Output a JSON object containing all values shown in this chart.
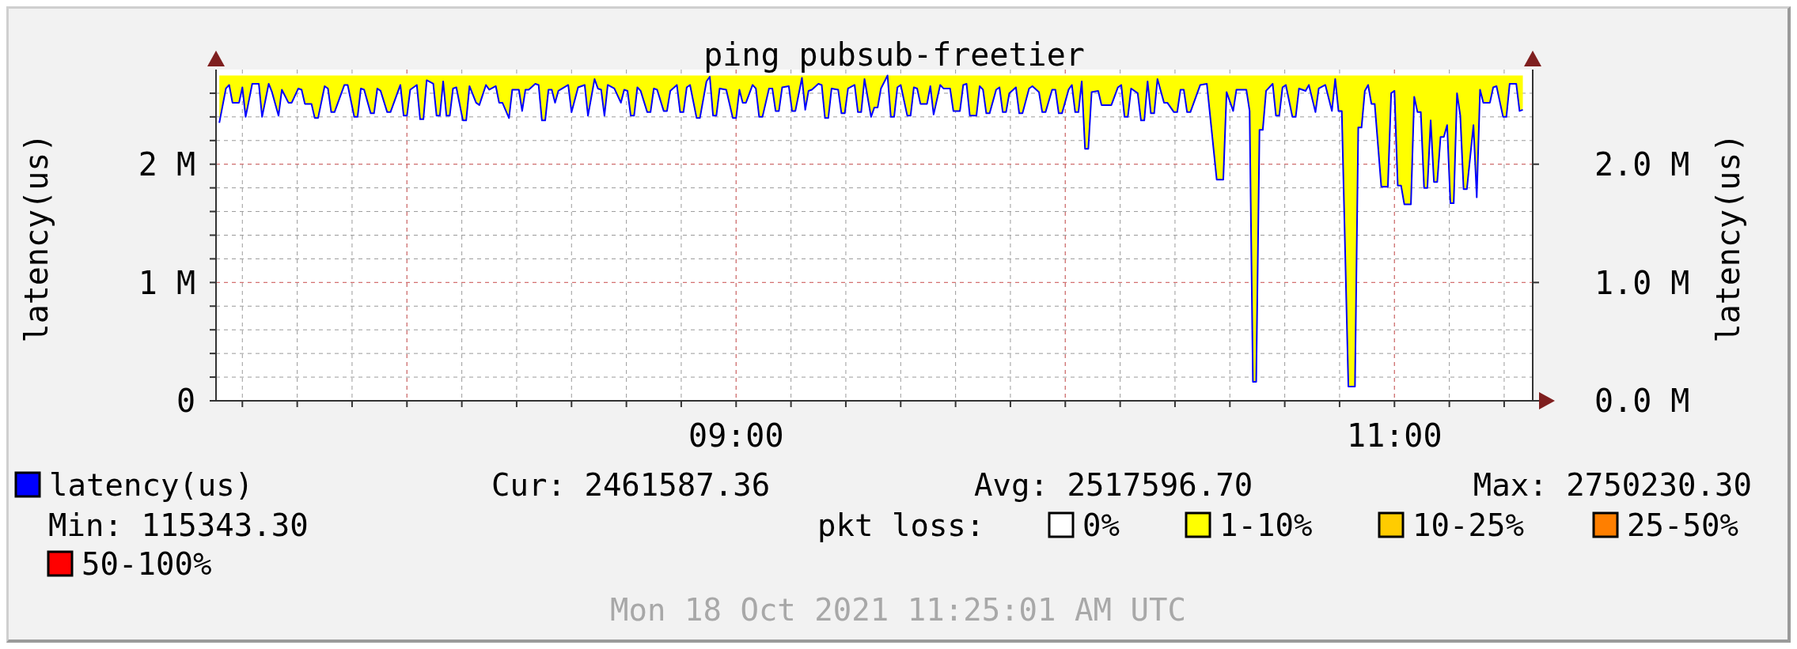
{
  "chart_data": {
    "type": "line",
    "title": "ping pubsub-freetier",
    "ylabel": "latency(us)",
    "y2label": "latency(us)",
    "legend_title": "pkt loss:",
    "legend": "bottom",
    "grid": true,
    "annotations": [
      "Cur: 2461587.36",
      "Avg: 2517596.70",
      "Max: 2750230.30",
      "Min: 115343.30",
      "Mon 18 Oct 2021 11:25:01 AM UTC"
    ],
    "xlim": [
      7.42,
      11.42
    ],
    "ylim": [
      0,
      2800000
    ],
    "y2lim": [
      0,
      2800000
    ],
    "xticks": [
      {
        "value": 7.5,
        "label": null
      },
      {
        "value": 7.6667,
        "label": null
      },
      {
        "value": 7.8333,
        "label": null
      },
      {
        "value": 8,
        "label": null
      },
      {
        "value": 8.1667,
        "label": null
      },
      {
        "value": 8.3333,
        "label": null
      },
      {
        "value": 8.5,
        "label": null
      },
      {
        "value": 8.6667,
        "label": null
      },
      {
        "value": 8.8333,
        "label": null
      },
      {
        "value": 9,
        "label": "09:00"
      },
      {
        "value": 9.1667,
        "label": null
      },
      {
        "value": 9.3333,
        "label": null
      },
      {
        "value": 9.5,
        "label": null
      },
      {
        "value": 9.6667,
        "label": null
      },
      {
        "value": 9.8333,
        "label": null
      },
      {
        "value": 10,
        "label": null
      },
      {
        "value": 10.1667,
        "label": null
      },
      {
        "value": 10.3333,
        "label": null
      },
      {
        "value": 10.5,
        "label": null
      },
      {
        "value": 10.6667,
        "label": null
      },
      {
        "value": 10.8333,
        "label": null
      },
      {
        "value": 11,
        "label": "11:00"
      },
      {
        "value": 11.1667,
        "label": null
      },
      {
        "value": 11.3333,
        "label": null
      }
    ],
    "yticks": [
      0,
      {
        "value": 200000,
        "label": null
      },
      {
        "value": 400000,
        "label": null
      },
      {
        "value": 600000,
        "label": null
      },
      {
        "value": 800000,
        "label": null
      },
      {
        "value": 1000000,
        "label": "1 M"
      },
      {
        "value": 1200000,
        "label": null
      },
      {
        "value": 1400000,
        "label": null
      },
      {
        "value": 1600000,
        "label": null
      },
      {
        "value": 1800000,
        "label": null
      },
      {
        "value": 2000000,
        "label": "2 M"
      },
      {
        "value": 2200000,
        "label": null
      },
      {
        "value": 2400000,
        "label": null
      },
      {
        "value": 2600000,
        "label": null
      }
    ],
    "y2ticks": [
      {
        "value": 0,
        "label": "0.0 M"
      },
      {
        "value": 1000000,
        "label": "1.0 M"
      },
      {
        "value": 2000000,
        "label": "2.0 M"
      }
    ],
    "series": [
      {
        "name": "latency(us)",
        "color": "#0000ff",
        "x": [
          7.43,
          7.45,
          7.46,
          7.47,
          7.49,
          7.5,
          7.51,
          7.53,
          7.55,
          7.56,
          7.58,
          7.59,
          7.61,
          7.62,
          7.64,
          7.65,
          7.67,
          7.68,
          7.69,
          7.71,
          7.72,
          7.73,
          7.75,
          7.76,
          7.77,
          7.78,
          7.81,
          7.82,
          7.84,
          7.85,
          7.86,
          7.87,
          7.89,
          7.9,
          7.91,
          7.92,
          7.94,
          7.95,
          7.98,
          7.99,
          8.0,
          8.01,
          8.03,
          8.04,
          8.05,
          8.06,
          8.08,
          8.09,
          8.1,
          8.11,
          8.12,
          8.13,
          8.14,
          8.15,
          8.17,
          8.18,
          8.19,
          8.21,
          8.22,
          8.24,
          8.25,
          8.27,
          8.28,
          8.29,
          8.31,
          8.32,
          8.34,
          8.35,
          8.36,
          8.37,
          8.39,
          8.4,
          8.41,
          8.42,
          8.43,
          8.44,
          8.45,
          8.46,
          8.49,
          8.5,
          8.52,
          8.54,
          8.55,
          8.57,
          8.58,
          8.59,
          8.6,
          8.61,
          8.63,
          8.65,
          8.66,
          8.67,
          8.68,
          8.69,
          8.7,
          8.71,
          8.73,
          8.74,
          8.75,
          8.76,
          8.78,
          8.79,
          8.8,
          8.82,
          8.83,
          8.84,
          8.85,
          8.86,
          8.88,
          8.89,
          8.91,
          8.92,
          8.93,
          8.94,
          8.95,
          8.97,
          8.99,
          9.0,
          9.01,
          9.02,
          9.03,
          9.05,
          9.06,
          9.07,
          9.08,
          9.1,
          9.11,
          9.12,
          9.13,
          9.14,
          9.16,
          9.17,
          9.18,
          9.2,
          9.21,
          9.22,
          9.23,
          9.25,
          9.26,
          9.27,
          9.28,
          9.29,
          9.31,
          9.32,
          9.33,
          9.34,
          9.36,
          9.37,
          9.38,
          9.39,
          9.41,
          9.42,
          9.43,
          9.44,
          9.46,
          9.47,
          9.48,
          9.49,
          9.5,
          9.52,
          9.53,
          9.54,
          9.55,
          9.56,
          9.58,
          9.59,
          9.6,
          9.62,
          9.63,
          9.65,
          9.66,
          9.68,
          9.69,
          9.7,
          9.71,
          9.73,
          9.74,
          9.75,
          9.76,
          9.77,
          9.79,
          9.8,
          9.81,
          9.82,
          9.83,
          9.85,
          9.86,
          9.87,
          9.89,
          9.9,
          9.92,
          9.93,
          9.94,
          9.96,
          9.97,
          9.98,
          9.99,
          10.01,
          10.02,
          10.03,
          10.04,
          10.05,
          10.06,
          10.07,
          10.08,
          10.1,
          10.11,
          10.14,
          10.16,
          10.17,
          10.18,
          10.19,
          10.2,
          10.22,
          10.23,
          10.24,
          10.25,
          10.26,
          10.27,
          10.28,
          10.3,
          10.31,
          10.33,
          10.34,
          10.35,
          10.36,
          10.37,
          10.38,
          10.41,
          10.43,
          10.46,
          10.48,
          10.49,
          10.51,
          10.52,
          10.55,
          10.56,
          10.57,
          10.58,
          10.59,
          10.6,
          10.61,
          10.63,
          10.64,
          10.65,
          10.66,
          10.67,
          10.69,
          10.7,
          10.71,
          10.73,
          10.74,
          10.76,
          10.77,
          10.79,
          10.81,
          10.82,
          10.83,
          10.84,
          10.86,
          10.88,
          10.89,
          10.9,
          10.91,
          10.92,
          10.93,
          10.94,
          10.96,
          10.98,
          10.99,
          11.0,
          11.01,
          11.02,
          11.03,
          11.05,
          11.06,
          11.07,
          11.08,
          11.09,
          11.1,
          11.11,
          11.12,
          11.13,
          11.14,
          11.15,
          11.16,
          11.17,
          11.18,
          11.19,
          11.2,
          11.21,
          11.22,
          11.24,
          11.25,
          11.26,
          11.27,
          11.29,
          11.3,
          11.31,
          11.33,
          11.34,
          11.35,
          11.37,
          11.38,
          11.39
        ],
        "values": [
          2350000,
          2640000,
          2670000,
          2520000,
          2520000,
          2650000,
          2400000,
          2680000,
          2680000,
          2400000,
          2680000,
          2610000,
          2410000,
          2630000,
          2520000,
          2520000,
          2640000,
          2630000,
          2510000,
          2510000,
          2390000,
          2390000,
          2660000,
          2640000,
          2440000,
          2440000,
          2670000,
          2670000,
          2400000,
          2400000,
          2640000,
          2630000,
          2430000,
          2430000,
          2640000,
          2620000,
          2440000,
          2440000,
          2670000,
          2410000,
          2410000,
          2630000,
          2670000,
          2380000,
          2380000,
          2710000,
          2680000,
          2410000,
          2410000,
          2700000,
          2410000,
          2410000,
          2640000,
          2650000,
          2370000,
          2370000,
          2660000,
          2520000,
          2500000,
          2670000,
          2630000,
          2660000,
          2520000,
          2520000,
          2390000,
          2630000,
          2630000,
          2450000,
          2630000,
          2630000,
          2680000,
          2670000,
          2370000,
          2370000,
          2630000,
          2630000,
          2520000,
          2620000,
          2670000,
          2440000,
          2650000,
          2670000,
          2410000,
          2720000,
          2640000,
          2630000,
          2410000,
          2670000,
          2640000,
          2520000,
          2630000,
          2620000,
          2410000,
          2410000,
          2650000,
          2620000,
          2440000,
          2440000,
          2640000,
          2630000,
          2450000,
          2450000,
          2620000,
          2670000,
          2440000,
          2440000,
          2650000,
          2670000,
          2390000,
          2390000,
          2700000,
          2740000,
          2410000,
          2410000,
          2640000,
          2630000,
          2390000,
          2390000,
          2630000,
          2520000,
          2520000,
          2670000,
          2640000,
          2400000,
          2400000,
          2640000,
          2640000,
          2450000,
          2450000,
          2650000,
          2660000,
          2450000,
          2450000,
          2730000,
          2460000,
          2620000,
          2630000,
          2680000,
          2670000,
          2390000,
          2390000,
          2640000,
          2630000,
          2430000,
          2430000,
          2640000,
          2670000,
          2440000,
          2440000,
          2720000,
          2400000,
          2480000,
          2480000,
          2640000,
          2750000,
          2400000,
          2400000,
          2650000,
          2670000,
          2410000,
          2410000,
          2650000,
          2640000,
          2510000,
          2510000,
          2660000,
          2420000,
          2670000,
          2640000,
          2640000,
          2450000,
          2450000,
          2670000,
          2680000,
          2410000,
          2410000,
          2660000,
          2630000,
          2430000,
          2430000,
          2630000,
          2650000,
          2440000,
          2440000,
          2600000,
          2650000,
          2430000,
          2430000,
          2640000,
          2660000,
          2610000,
          2440000,
          2440000,
          2630000,
          2630000,
          2430000,
          2430000,
          2630000,
          2670000,
          2440000,
          2440000,
          2700000,
          2130000,
          2130000,
          2610000,
          2620000,
          2500000,
          2500000,
          2650000,
          2670000,
          2400000,
          2400000,
          2640000,
          2600000,
          2370000,
          2370000,
          2700000,
          2430000,
          2430000,
          2720000,
          2520000,
          2520000,
          2440000,
          2440000,
          2630000,
          2630000,
          2440000,
          2440000,
          2670000,
          2680000,
          1870000,
          1870000,
          2610000,
          2450000,
          2630000,
          2630000,
          2450000,
          160000,
          160000,
          2290000,
          2290000,
          2620000,
          2680000,
          2410000,
          2410000,
          2650000,
          2670000,
          2400000,
          2400000,
          2640000,
          2620000,
          2670000,
          2440000,
          2640000,
          2670000,
          2450000,
          2720000,
          2450000,
          2450000,
          120000,
          120000,
          2310000,
          2310000,
          2620000,
          2670000,
          2510000,
          2510000,
          1810000,
          1810000,
          2600000,
          2620000,
          1820000,
          1820000,
          1660000,
          1660000,
          2570000,
          2440000,
          2440000,
          1800000,
          1800000,
          2370000,
          1850000,
          1850000,
          2230000,
          2230000,
          2330000,
          1670000,
          1670000,
          2600000,
          2410000,
          1790000,
          1790000,
          2330000,
          1720000,
          2630000,
          2520000,
          2520000,
          2650000,
          2660000,
          2400000,
          2400000,
          2680000,
          2680000,
          2450000,
          2460000
        ]
      },
      {
        "name": "0%",
        "color": "#ffffff"
      },
      {
        "type": "area",
        "name": "1-10%",
        "color": "#ffff00",
        "x": [
          7.43,
          11.39
        ],
        "values": [
          2750000,
          2750000
        ]
      },
      {
        "name": "10-25%",
        "color": "#ffcc00"
      },
      {
        "name": "25-50%",
        "color": "#ff7f00"
      },
      {
        "name": "50-100%",
        "color": "#ff0000"
      }
    ]
  }
}
